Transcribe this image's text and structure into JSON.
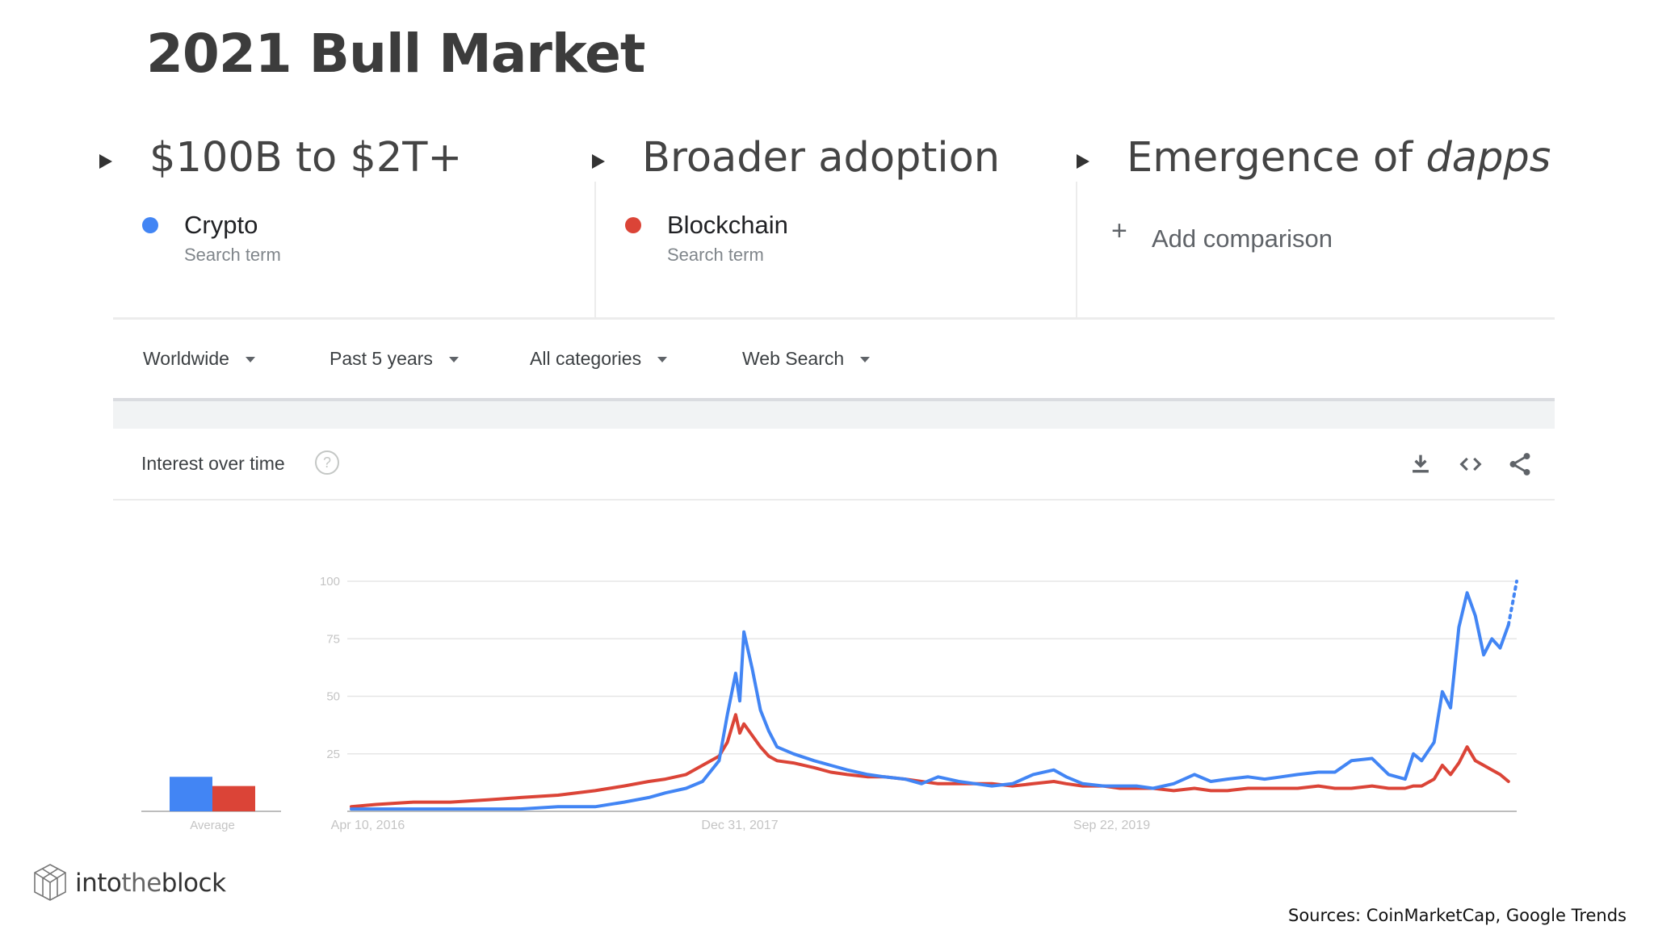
{
  "slide": {
    "title": "2021 Bull Market",
    "bullets": [
      {
        "text": "$100B to $2T+"
      },
      {
        "text": "Broader adoption"
      },
      {
        "text_prefix": "Emergence of ",
        "text_emphasis": "dapps"
      }
    ],
    "sources": "Sources: CoinMarketCap, Google Trends",
    "logo": {
      "text_prefix": "into",
      "text_middle": "the",
      "text_suffix": "block",
      "icon": "cube-logo-icon"
    }
  },
  "trends": {
    "terms": [
      {
        "name": "Crypto",
        "subtitle": "Search term",
        "color": "#4285f4"
      },
      {
        "name": "Blockchain",
        "subtitle": "Search term",
        "color": "#db4437"
      }
    ],
    "add_comparison": {
      "icon": "plus-icon",
      "label": "Add comparison"
    },
    "filters": [
      {
        "label": "Worldwide",
        "icon": "caret-down-icon"
      },
      {
        "label": "Past 5 years",
        "icon": "caret-down-icon"
      },
      {
        "label": "All categories",
        "icon": "caret-down-icon"
      },
      {
        "label": "Web Search",
        "icon": "caret-down-icon"
      }
    ],
    "card": {
      "title": "Interest over time",
      "help_icon": "help-circle-icon",
      "actions": [
        {
          "name": "download-icon",
          "label": "Download"
        },
        {
          "name": "embed-icon",
          "label": "Embed"
        },
        {
          "name": "share-icon",
          "label": "Share"
        }
      ]
    }
  },
  "chart_data": {
    "type": "line",
    "ylim": [
      0,
      100
    ],
    "yticks": [
      "100",
      "75",
      "50",
      "25"
    ],
    "xticks": [
      "Apr 10, 2016",
      "Dec 31, 2017",
      "Sep 22, 2019"
    ],
    "average_label": "Average",
    "average_values": [
      {
        "name": "Crypto",
        "value": 15
      },
      {
        "name": "Blockchain",
        "value": 11
      }
    ],
    "grid": true,
    "series": [
      {
        "name": "Crypto",
        "color": "#4285f4",
        "points": [
          [
            "2016-03-13",
            1
          ],
          [
            "2016-04-24",
            1
          ],
          [
            "2016-06-26",
            1
          ],
          [
            "2016-08-28",
            1
          ],
          [
            "2016-10-30",
            1
          ],
          [
            "2016-12-25",
            1
          ],
          [
            "2017-02-26",
            2
          ],
          [
            "2017-04-30",
            2
          ],
          [
            "2017-06-18",
            4
          ],
          [
            "2017-07-30",
            6
          ],
          [
            "2017-08-27",
            8
          ],
          [
            "2017-10-01",
            10
          ],
          [
            "2017-10-29",
            13
          ],
          [
            "2017-11-26",
            22
          ],
          [
            "2017-12-10",
            42
          ],
          [
            "2017-12-24",
            60
          ],
          [
            "2017-12-31",
            48
          ],
          [
            "2018-01-07",
            78
          ],
          [
            "2018-01-21",
            62
          ],
          [
            "2018-02-04",
            44
          ],
          [
            "2018-02-18",
            35
          ],
          [
            "2018-03-04",
            28
          ],
          [
            "2018-04-01",
            25
          ],
          [
            "2018-05-06",
            22
          ],
          [
            "2018-06-03",
            20
          ],
          [
            "2018-07-01",
            18
          ],
          [
            "2018-08-05",
            16
          ],
          [
            "2018-09-02",
            15
          ],
          [
            "2018-10-07",
            14
          ],
          [
            "2018-11-04",
            12
          ],
          [
            "2018-12-02",
            15
          ],
          [
            "2019-01-06",
            13
          ],
          [
            "2019-02-03",
            12
          ],
          [
            "2019-03-03",
            11
          ],
          [
            "2019-04-07",
            12
          ],
          [
            "2019-05-12",
            16
          ],
          [
            "2019-06-16",
            18
          ],
          [
            "2019-07-07",
            15
          ],
          [
            "2019-08-04",
            12
          ],
          [
            "2019-09-08",
            11
          ],
          [
            "2019-10-06",
            11
          ],
          [
            "2019-11-03",
            11
          ],
          [
            "2019-12-01",
            10
          ],
          [
            "2020-01-05",
            12
          ],
          [
            "2020-02-09",
            16
          ],
          [
            "2020-03-08",
            13
          ],
          [
            "2020-04-05",
            14
          ],
          [
            "2020-05-10",
            15
          ],
          [
            "2020-06-07",
            14
          ],
          [
            "2020-07-05",
            15
          ],
          [
            "2020-08-02",
            16
          ],
          [
            "2020-09-06",
            17
          ],
          [
            "2020-10-04",
            17
          ],
          [
            "2020-11-01",
            22
          ],
          [
            "2020-12-06",
            23
          ],
          [
            "2021-01-03",
            16
          ],
          [
            "2021-01-31",
            14
          ],
          [
            "2021-02-14",
            25
          ],
          [
            "2021-02-28",
            22
          ],
          [
            "2021-03-21",
            30
          ],
          [
            "2021-04-04",
            52
          ],
          [
            "2021-04-18",
            45
          ],
          [
            "2021-05-02",
            80
          ],
          [
            "2021-05-16",
            95
          ],
          [
            "2021-05-30",
            85
          ],
          [
            "2021-06-13",
            68
          ],
          [
            "2021-06-27",
            75
          ],
          [
            "2021-07-11",
            71
          ],
          [
            "2021-07-25",
            81
          ]
        ],
        "partial_points": [
          [
            "2021-07-25",
            81
          ],
          [
            "2021-08-08",
            100
          ]
        ]
      },
      {
        "name": "Blockchain",
        "color": "#db4437",
        "points": [
          [
            "2016-03-13",
            2
          ],
          [
            "2016-04-24",
            3
          ],
          [
            "2016-06-26",
            4
          ],
          [
            "2016-08-28",
            4
          ],
          [
            "2016-10-30",
            5
          ],
          [
            "2016-12-25",
            6
          ],
          [
            "2017-02-26",
            7
          ],
          [
            "2017-04-30",
            9
          ],
          [
            "2017-06-18",
            11
          ],
          [
            "2017-07-30",
            13
          ],
          [
            "2017-08-27",
            14
          ],
          [
            "2017-10-01",
            16
          ],
          [
            "2017-10-29",
            20
          ],
          [
            "2017-11-26",
            24
          ],
          [
            "2017-12-10",
            30
          ],
          [
            "2017-12-24",
            42
          ],
          [
            "2017-12-31",
            34
          ],
          [
            "2018-01-07",
            38
          ],
          [
            "2018-01-21",
            33
          ],
          [
            "2018-02-04",
            28
          ],
          [
            "2018-02-18",
            24
          ],
          [
            "2018-03-04",
            22
          ],
          [
            "2018-04-01",
            21
          ],
          [
            "2018-05-06",
            19
          ],
          [
            "2018-06-03",
            17
          ],
          [
            "2018-07-01",
            16
          ],
          [
            "2018-08-05",
            15
          ],
          [
            "2018-09-02",
            15
          ],
          [
            "2018-10-07",
            14
          ],
          [
            "2018-11-04",
            13
          ],
          [
            "2018-12-02",
            12
          ],
          [
            "2019-01-06",
            12
          ],
          [
            "2019-02-03",
            12
          ],
          [
            "2019-03-03",
            12
          ],
          [
            "2019-04-07",
            11
          ],
          [
            "2019-05-12",
            12
          ],
          [
            "2019-06-16",
            13
          ],
          [
            "2019-07-07",
            12
          ],
          [
            "2019-08-04",
            11
          ],
          [
            "2019-09-08",
            11
          ],
          [
            "2019-10-06",
            10
          ],
          [
            "2019-11-03",
            10
          ],
          [
            "2019-12-01",
            10
          ],
          [
            "2020-01-05",
            9
          ],
          [
            "2020-02-09",
            10
          ],
          [
            "2020-03-08",
            9
          ],
          [
            "2020-04-05",
            9
          ],
          [
            "2020-05-10",
            10
          ],
          [
            "2020-06-07",
            10
          ],
          [
            "2020-07-05",
            10
          ],
          [
            "2020-08-02",
            10
          ],
          [
            "2020-09-06",
            11
          ],
          [
            "2020-10-04",
            10
          ],
          [
            "2020-11-01",
            10
          ],
          [
            "2020-12-06",
            11
          ],
          [
            "2021-01-03",
            10
          ],
          [
            "2021-01-31",
            10
          ],
          [
            "2021-02-14",
            11
          ],
          [
            "2021-02-28",
            11
          ],
          [
            "2021-03-21",
            14
          ],
          [
            "2021-04-04",
            20
          ],
          [
            "2021-04-18",
            16
          ],
          [
            "2021-05-02",
            21
          ],
          [
            "2021-05-16",
            28
          ],
          [
            "2021-05-30",
            22
          ],
          [
            "2021-06-13",
            20
          ],
          [
            "2021-06-27",
            18
          ],
          [
            "2021-07-11",
            16
          ],
          [
            "2021-07-25",
            13
          ]
        ]
      }
    ]
  }
}
